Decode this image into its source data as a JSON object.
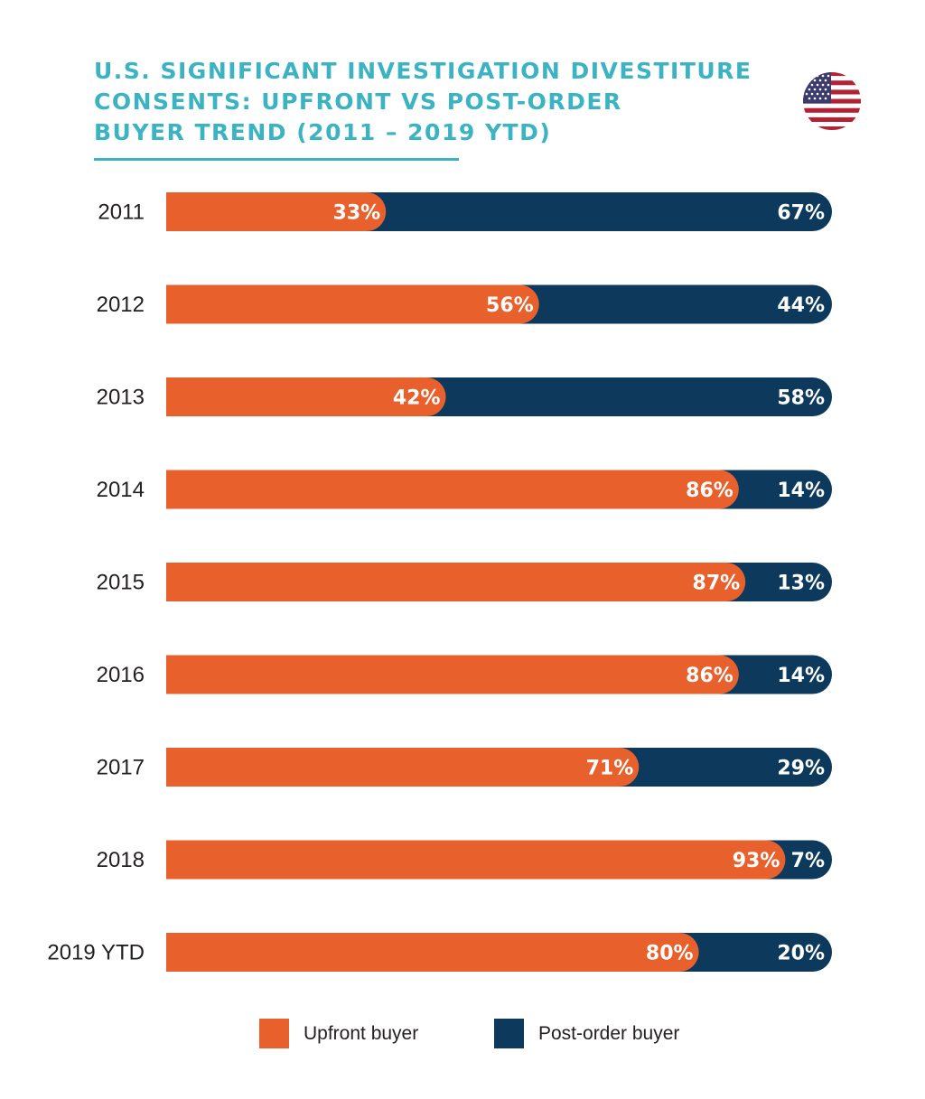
{
  "title_lines": [
    "U.S. SIGNIFICANT INVESTIGATION DIVESTITURE",
    "CONSENTS: UPFRONT VS POST-ORDER",
    "BUYER TREND (2011 – 2019 YTD)"
  ],
  "flag_icon": "us-flag-icon",
  "colors": {
    "upfront": "#e8612c",
    "post_order": "#0d3a5c",
    "title": "#3bb3c3"
  },
  "legend": {
    "upfront_label": "Upfront buyer",
    "post_order_label": "Post-order buyer"
  },
  "chart_data": {
    "type": "bar",
    "orientation": "horizontal",
    "stacked": true,
    "categories": [
      "2011",
      "2012",
      "2013",
      "2014",
      "2015",
      "2016",
      "2017",
      "2018",
      "2019 YTD"
    ],
    "series": [
      {
        "name": "Upfront buyer",
        "values": [
          33,
          56,
          42,
          86,
          87,
          86,
          71,
          93,
          80
        ]
      },
      {
        "name": "Post-order buyer",
        "values": [
          67,
          44,
          58,
          14,
          13,
          14,
          29,
          7,
          20
        ]
      }
    ],
    "value_labels": {
      "upfront": [
        "33%",
        "56%",
        "42%",
        "86%",
        "87%",
        "86%",
        "71%",
        "93%",
        "80%"
      ],
      "post_order": [
        "67%",
        "44%",
        "58%",
        "14%",
        "13%",
        "14%",
        "29%",
        "7%",
        "20%"
      ]
    },
    "xlim": [
      0,
      100
    ],
    "legend_position": "bottom",
    "grid": false
  }
}
